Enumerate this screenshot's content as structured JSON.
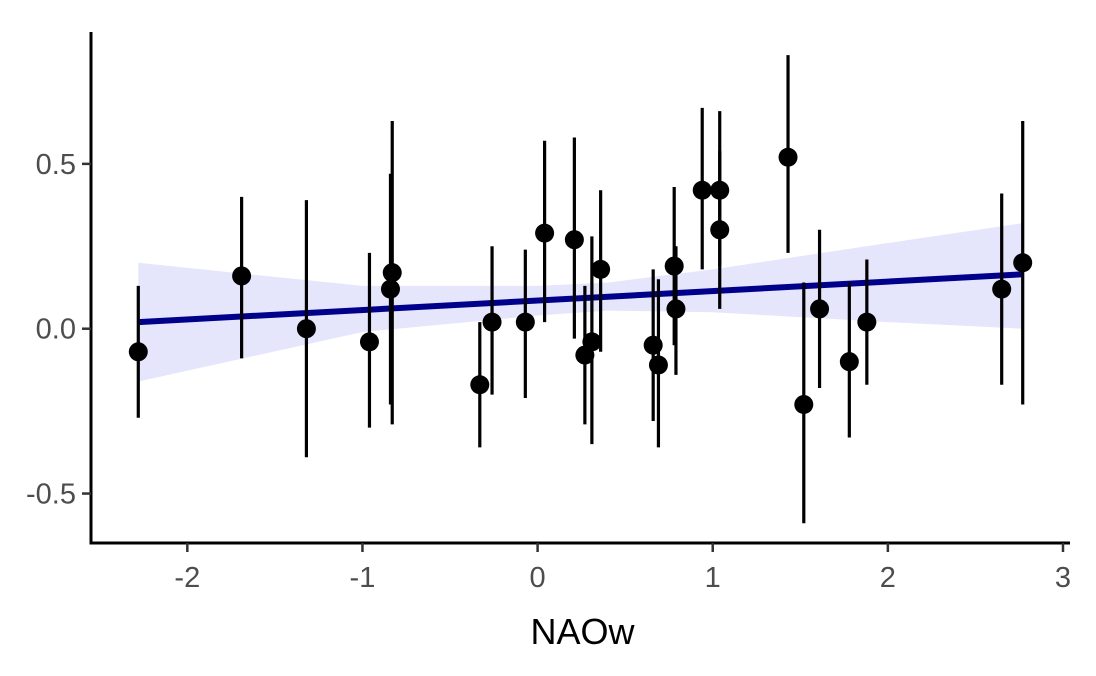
{
  "chart_data": {
    "type": "scatter",
    "title": "",
    "xlabel": "NAOw",
    "ylabel": "",
    "xlim": [
      -2.55,
      3.04
    ],
    "ylim": [
      -0.65,
      0.9
    ],
    "x_ticks": [
      -2,
      -1,
      0,
      1,
      2,
      3
    ],
    "x_tick_labels": [
      "-2",
      "-1",
      "0",
      "1",
      "2",
      "3"
    ],
    "y_ticks": [
      -0.5,
      0.0,
      0.5
    ],
    "y_tick_labels": [
      "-0.5",
      "0.0",
      "0.5"
    ],
    "grid": false,
    "legend": "none",
    "colors": {
      "points": "#000000",
      "error_bars": "#000000",
      "fit_line": "#00008b",
      "ribbon": "#e5e5fc",
      "axis": "#000000"
    },
    "points": [
      {
        "x": -2.28,
        "y": -0.07,
        "lo": -0.27,
        "hi": 0.13
      },
      {
        "x": -1.69,
        "y": 0.16,
        "lo": -0.09,
        "hi": 0.4
      },
      {
        "x": -1.32,
        "y": 0.0,
        "lo": -0.39,
        "hi": 0.39
      },
      {
        "x": -0.96,
        "y": -0.04,
        "lo": -0.3,
        "hi": 0.23
      },
      {
        "x": -0.84,
        "y": 0.12,
        "lo": -0.23,
        "hi": 0.47
      },
      {
        "x": -0.83,
        "y": 0.17,
        "lo": -0.29,
        "hi": 0.63
      },
      {
        "x": -0.33,
        "y": -0.17,
        "lo": -0.36,
        "hi": 0.02
      },
      {
        "x": -0.26,
        "y": 0.02,
        "lo": -0.2,
        "hi": 0.25
      },
      {
        "x": -0.07,
        "y": 0.02,
        "lo": -0.21,
        "hi": 0.24
      },
      {
        "x": 0.04,
        "y": 0.29,
        "lo": 0.02,
        "hi": 0.57
      },
      {
        "x": 0.21,
        "y": 0.27,
        "lo": -0.03,
        "hi": 0.58
      },
      {
        "x": 0.27,
        "y": -0.08,
        "lo": -0.29,
        "hi": 0.13
      },
      {
        "x": 0.31,
        "y": -0.04,
        "lo": -0.35,
        "hi": 0.28
      },
      {
        "x": 0.36,
        "y": 0.18,
        "lo": -0.07,
        "hi": 0.42
      },
      {
        "x": 0.66,
        "y": -0.05,
        "lo": -0.28,
        "hi": 0.18
      },
      {
        "x": 0.69,
        "y": -0.11,
        "lo": -0.36,
        "hi": 0.15
      },
      {
        "x": 0.78,
        "y": 0.19,
        "lo": -0.05,
        "hi": 0.43
      },
      {
        "x": 0.79,
        "y": 0.06,
        "lo": -0.14,
        "hi": 0.25
      },
      {
        "x": 0.94,
        "y": 0.42,
        "lo": 0.18,
        "hi": 0.67
      },
      {
        "x": 1.04,
        "y": 0.42,
        "lo": 0.19,
        "hi": 0.66
      },
      {
        "x": 1.04,
        "y": 0.3,
        "lo": 0.06,
        "hi": 0.54
      },
      {
        "x": 1.43,
        "y": 0.52,
        "lo": 0.23,
        "hi": 0.83
      },
      {
        "x": 1.52,
        "y": -0.23,
        "lo": -0.59,
        "hi": 0.14
      },
      {
        "x": 1.61,
        "y": 0.06,
        "lo": -0.18,
        "hi": 0.3
      },
      {
        "x": 1.78,
        "y": -0.1,
        "lo": -0.33,
        "hi": 0.14
      },
      {
        "x": 1.88,
        "y": 0.02,
        "lo": -0.17,
        "hi": 0.21
      },
      {
        "x": 2.65,
        "y": 0.12,
        "lo": -0.17,
        "hi": 0.41
      },
      {
        "x": 2.77,
        "y": 0.2,
        "lo": -0.23,
        "hi": 0.63
      }
    ],
    "fit_line": {
      "x": [
        -2.28,
        2.77
      ],
      "y": [
        0.02,
        0.165
      ]
    },
    "ribbon": {
      "x": [
        -2.28,
        -1.0,
        0.0,
        0.4,
        1.0,
        2.0,
        2.77
      ],
      "lower": [
        -0.16,
        -0.01,
        0.04,
        0.055,
        0.05,
        0.02,
        0.0
      ],
      "upper": [
        0.2,
        0.13,
        0.13,
        0.14,
        0.18,
        0.26,
        0.32
      ]
    }
  }
}
